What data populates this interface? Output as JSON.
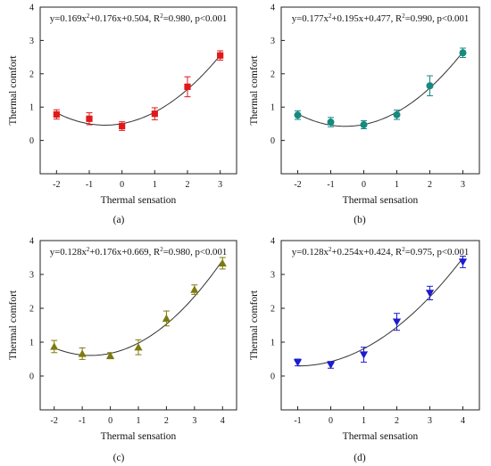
{
  "chart_data": [
    {
      "type": "scatter",
      "panel_label": "(a)",
      "equation_prefix": "y=0.169x",
      "equation_suffix": "+0.176x+0.504, R",
      "equation_tail": "=0.980, p<0.001",
      "xlabel": "Thermal sensation",
      "ylabel": "Thermal comfort",
      "xlim": [
        -2.5,
        3.5
      ],
      "ylim": [
        -1,
        4
      ],
      "xticks": [
        -2,
        -1,
        0,
        1,
        2,
        3
      ],
      "yticks": [
        0,
        1,
        2,
        3,
        4
      ],
      "marker": "square",
      "color": "#e0191a",
      "series": [
        {
          "x": [
            -2,
            -1,
            0,
            1,
            2,
            3
          ],
          "y": [
            0.78,
            0.65,
            0.43,
            0.8,
            1.61,
            2.55
          ],
          "err": [
            0.14,
            0.18,
            0.13,
            0.18,
            0.3,
            0.14
          ]
        }
      ],
      "fit": {
        "a": 0.169,
        "b": 0.176,
        "c": 0.504
      }
    },
    {
      "type": "scatter",
      "panel_label": "(b)",
      "equation_prefix": "y=0.177x",
      "equation_suffix": "+0.195x+0.477, R",
      "equation_tail": "=0.990, p<0.001",
      "xlabel": "Thermal sensation",
      "ylabel": "Thermal comfort",
      "xlim": [
        -2.5,
        3.5
      ],
      "ylim": [
        -1,
        4
      ],
      "xticks": [
        -2,
        -1,
        0,
        1,
        2,
        3
      ],
      "yticks": [
        0,
        1,
        2,
        3,
        4
      ],
      "marker": "circle",
      "color": "#168a80",
      "series": [
        {
          "x": [
            -2,
            -1,
            0,
            1,
            2,
            3
          ],
          "y": [
            0.76,
            0.55,
            0.47,
            0.77,
            1.64,
            2.63
          ],
          "err": [
            0.13,
            0.14,
            0.12,
            0.14,
            0.3,
            0.14
          ]
        }
      ],
      "fit": {
        "a": 0.177,
        "b": 0.195,
        "c": 0.477
      }
    },
    {
      "type": "scatter",
      "panel_label": "(c)",
      "equation_prefix": "y=0.128x",
      "equation_suffix": "+0.176x+0.669, R",
      "equation_tail": "=0.980, p<0.001",
      "xlabel": "Thermal sensation",
      "ylabel": "Thermal comfort",
      "xlim": [
        -2.5,
        4.5
      ],
      "ylim": [
        -1,
        4
      ],
      "xticks": [
        -2,
        -1,
        0,
        1,
        2,
        3,
        4
      ],
      "yticks": [
        0,
        1,
        2,
        3,
        4
      ],
      "marker": "triangle-up",
      "color": "#7d7b0e",
      "series": [
        {
          "x": [
            -2,
            -1,
            0,
            1,
            2,
            3,
            4
          ],
          "y": [
            0.87,
            0.66,
            0.6,
            0.85,
            1.7,
            2.55,
            3.33
          ],
          "err": [
            0.18,
            0.17,
            0.09,
            0.22,
            0.22,
            0.14,
            0.17
          ]
        }
      ],
      "fit": {
        "a": 0.128,
        "b": 0.176,
        "c": 0.669
      }
    },
    {
      "type": "scatter",
      "panel_label": "(d)",
      "equation_prefix": "y=0.128x",
      "equation_suffix": "+0.254x+0.424, R",
      "equation_tail": "=0.975, p<0.001",
      "xlabel": "Thermal sensation",
      "ylabel": "Thermal comfort",
      "xlim": [
        -1.5,
        4.5
      ],
      "ylim": [
        -1,
        4
      ],
      "xticks": [
        -1,
        0,
        1,
        2,
        3,
        4
      ],
      "yticks": [
        0,
        1,
        2,
        3,
        4
      ],
      "marker": "triangle-down",
      "color": "#1c1ccf",
      "series": [
        {
          "x": [
            -1,
            0,
            1,
            2,
            3,
            4
          ],
          "y": [
            0.4,
            0.33,
            0.63,
            1.6,
            2.45,
            3.37
          ],
          "err": [
            0.1,
            0.1,
            0.22,
            0.25,
            0.2,
            0.17
          ]
        }
      ],
      "fit": {
        "a": 0.128,
        "b": 0.254,
        "c": 0.424
      }
    }
  ]
}
